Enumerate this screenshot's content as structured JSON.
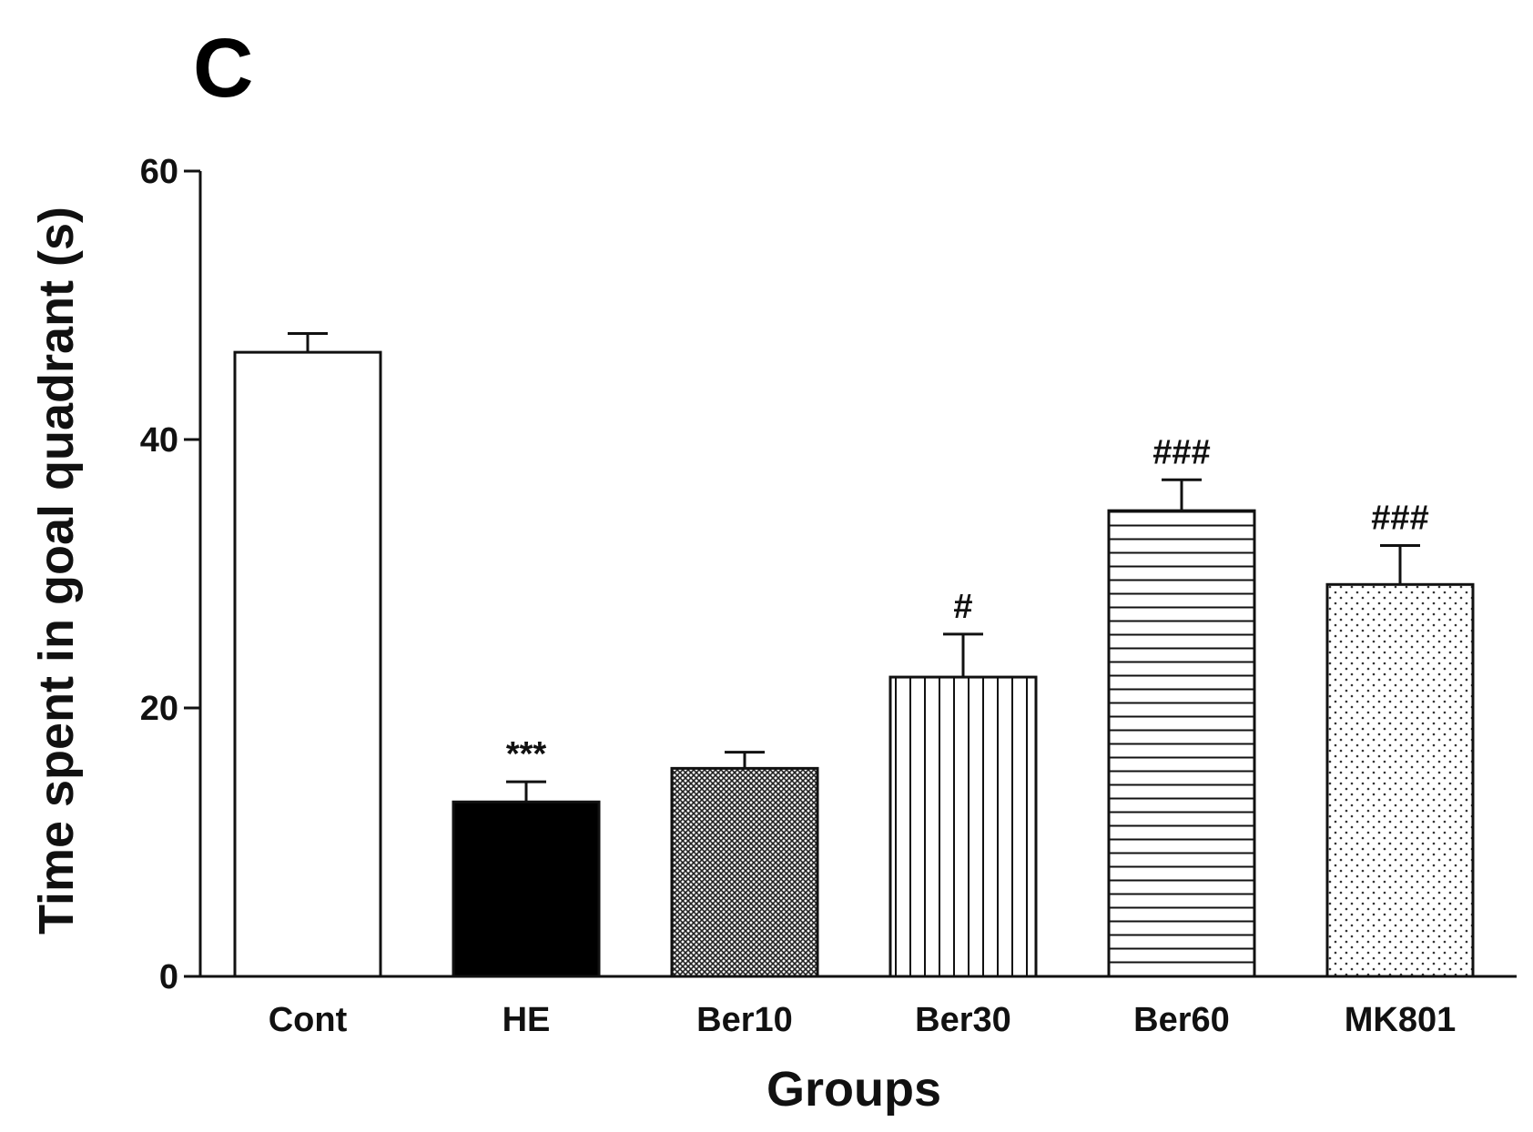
{
  "panel_label": "C",
  "chart_data": {
    "type": "bar",
    "title": "",
    "xlabel": "Groups",
    "ylabel": "Time spent in goal quadrant (s)",
    "ylim": [
      0,
      60
    ],
    "yticks": [
      0,
      20,
      40,
      60
    ],
    "grid": false,
    "categories": [
      "Cont",
      "HE",
      "Ber10",
      "Ber30",
      "Ber60",
      "MK801"
    ],
    "values": [
      46.5,
      13.0,
      15.5,
      22.3,
      34.7,
      29.2
    ],
    "errors": [
      1.4,
      1.5,
      1.2,
      3.2,
      2.3,
      2.9
    ],
    "significance": [
      "",
      "***",
      "",
      "#",
      "###",
      "###"
    ],
    "fill_patterns": [
      "white",
      "solid-black",
      "crosshatch",
      "vertical-lines",
      "horizontal-lines",
      "dots"
    ]
  }
}
